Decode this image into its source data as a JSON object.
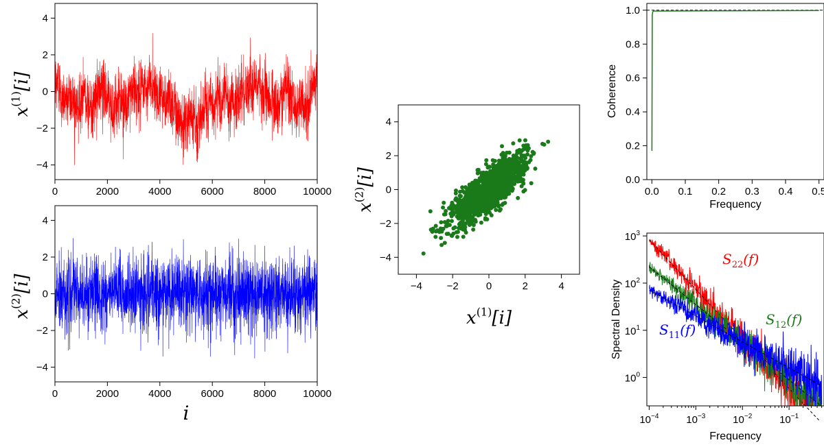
{
  "chart_data": [
    {
      "id": "ts1",
      "type": "line",
      "ylabel": {
        "base": "x",
        "sup": "(1)",
        "idx": "[i]"
      },
      "xlabel": "",
      "xlim": [
        0,
        10000
      ],
      "ylim": [
        -4.8,
        4.8
      ],
      "xticks": [
        0,
        2000,
        4000,
        6000,
        8000,
        10000
      ],
      "yticks": [
        -4,
        -2,
        0,
        2,
        4
      ],
      "color": "#ff0000",
      "series": {
        "n": 10000,
        "mean": 0,
        "std": 1.1,
        "min": -4.0,
        "max": 3.2
      }
    },
    {
      "id": "ts2",
      "type": "line",
      "ylabel": {
        "base": "x",
        "sup": "(2)",
        "idx": "[i]"
      },
      "xlabel": "i",
      "xlim": [
        0,
        10000
      ],
      "ylim": [
        -4.8,
        4.8
      ],
      "xticks": [
        0,
        2000,
        4000,
        6000,
        8000,
        10000
      ],
      "yticks": [
        -4,
        -2,
        0,
        2,
        4
      ],
      "color": "#0000ff",
      "series": {
        "n": 10000,
        "mean": 0,
        "std": 1.0,
        "min": -4.1,
        "max": 3.8
      }
    },
    {
      "id": "scatter",
      "type": "scatter",
      "xlabel": {
        "base": "x",
        "sup": "(1)",
        "idx": "[i]"
      },
      "ylabel": {
        "base": "x",
        "sup": "(2)",
        "idx": "[i]"
      },
      "xlim": [
        -5,
        5
      ],
      "ylim": [
        -5,
        5
      ],
      "xticks": [
        -4,
        -2,
        0,
        2,
        4
      ],
      "yticks": [
        -4,
        -2,
        0,
        2,
        4
      ],
      "color": "#1a7a1a",
      "correlation": 0.8,
      "n_points": 1500
    },
    {
      "id": "coherence",
      "type": "line",
      "xlabel": "Frequency",
      "ylabel": "Coherence",
      "xlim": [
        -0.015,
        0.515
      ],
      "ylim": [
        0,
        1.04
      ],
      "xticks": [
        0.0,
        0.1,
        0.2,
        0.3,
        0.4,
        0.5
      ],
      "yticks": [
        0.0,
        0.2,
        0.4,
        0.6,
        0.8,
        1.0
      ],
      "xtick_labels": [
        "0.0",
        "0.1",
        "0.2",
        "0.3",
        "0.4",
        "0.5"
      ],
      "ytick_labels": [
        "0.0",
        "0.2",
        "0.4",
        "0.6",
        "0.8",
        "1.0"
      ],
      "color": "#1a7a1a",
      "reference_line": 1.0,
      "x": [
        0.0001,
        0.0012,
        0.0025,
        0.005,
        0.5
      ],
      "y": [
        0.17,
        0.97,
        0.99,
        0.995,
        0.998
      ]
    },
    {
      "id": "spectra",
      "type": "line",
      "scale": "log-log",
      "xlabel": "Frequency",
      "ylabel": "Spectral Density",
      "xlim": [
        0.0001,
        0.5
      ],
      "ylim": [
        0.25,
        1000
      ],
      "xticks": [
        0.0001,
        0.001,
        0.01,
        0.1
      ],
      "yticks": [
        1,
        10,
        100,
        1000
      ],
      "xtick_labels": [
        {
          "b": "10",
          "e": "−4"
        },
        {
          "b": "10",
          "e": "−3"
        },
        {
          "b": "10",
          "e": "−2"
        },
        {
          "b": "10",
          "e": "−1"
        }
      ],
      "ytick_labels": [
        {
          "b": "10",
          "e": "0"
        },
        {
          "b": "10",
          "e": "1"
        },
        {
          "b": "10",
          "e": "2"
        },
        {
          "b": "10",
          "e": "3"
        }
      ],
      "series": [
        {
          "name_base": "S",
          "name_sub": "22",
          "name_arg": "(f)",
          "color": "#ff0000",
          "amp": 0.052,
          "slope": -1.05,
          "floor": 0.0
        },
        {
          "name_base": "S",
          "name_sub": "12",
          "name_arg": "(f)",
          "color": "#1a7a1a",
          "amp": 0.14,
          "slope": -0.8,
          "floor": 0.0
        },
        {
          "name_base": "S",
          "name_sub": "11",
          "name_arg": "(f)",
          "color": "#0000ff",
          "amp": 0.45,
          "slope": -0.55,
          "floor": 0.0
        }
      ]
    }
  ]
}
